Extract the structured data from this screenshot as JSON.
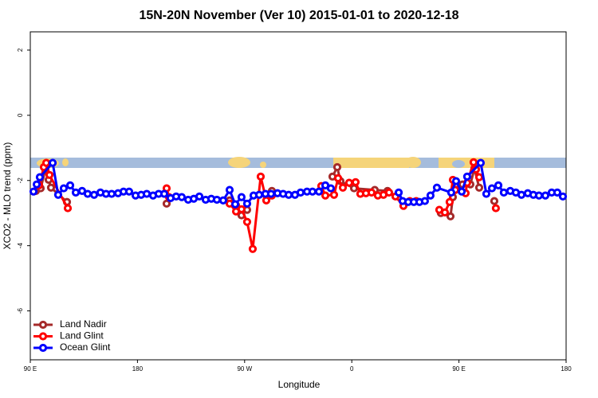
{
  "chart_data": {
    "type": "line",
    "title": "15N-20N November (Ver 10)   2015-01-01 to 2020-12-18",
    "x_label": "Longitude",
    "y_label": "XCO2 - MLO trend (ppm)",
    "xlim": [
      90,
      540
    ],
    "xticks": [
      {
        "value": 90,
        "label": "90 E"
      },
      180,
      {
        "value": 270,
        "label": "90 W"
      },
      {
        "value": 360,
        "label": "0"
      },
      {
        "value": 450,
        "label": "90 E"
      },
      {
        "value": 540,
        "label": "180"
      }
    ],
    "ylim": [
      -7.5,
      2.56
    ],
    "yticks": [
      -6,
      -4,
      -2,
      0,
      2
    ],
    "legend": "bottom-left",
    "series": [
      {
        "name": "Land Nadir",
        "color": "#a52a2a",
        "x": [
          94.7,
          98.7,
          102.7,
          105.4,
          107.4,
          120.8,
          null,
          204.5,
          null,
          257.4,
          262.8,
          267.4,
          272.1,
          null,
          288.2,
          292.9,
          null,
          343.8,
          347.8,
          350.5,
          361.9,
          379.3,
          390.0,
          null,
          434.8,
          442.9,
          444.9,
          447.6,
          453.0,
          459.6,
          463.0,
          467.0,
          null,
          479.7
        ],
        "values": [
          -2.32,
          -2.24,
          -1.66,
          -1.98,
          -2.22,
          -2.66,
          null,
          -2.71,
          null,
          -2.61,
          -2.76,
          -3.07,
          -2.9,
          null,
          -2.46,
          -2.32,
          null,
          -1.88,
          -1.59,
          -2.02,
          -2.24,
          -2.29,
          -2.32,
          null,
          -3.0,
          -3.1,
          -2.51,
          -2.12,
          -2.12,
          -2.12,
          -1.63,
          -2.22,
          null,
          -2.63
        ]
      },
      {
        "name": "Land Glint",
        "color": "#ff0000",
        "x": [
          97.4,
          101.4,
          103.4,
          106.1,
          121.5,
          null,
          204.5,
          206.5,
          null,
          257.4,
          262.8,
          267.4,
          272.1,
          276.8,
          283.5,
          288.2,
          292.9,
          null,
          334.4,
          337.8,
          345.1,
          348.5,
          352.5,
          357.8,
          363.2,
          367.2,
          371.9,
          376.6,
          381.9,
          386.6,
          391.3,
          396.7,
          403.4,
          408.7,
          414.1,
          null,
          433.5,
          438.2,
          442.2,
          444.9,
          446.9,
          455.6,
          456.9,
          462.3,
          464.3,
          467.0,
          null,
          481.0
        ],
        "values": [
          -2.15,
          -1.59,
          -1.46,
          -1.83,
          -2.85,
          null,
          -2.24,
          -2.51,
          null,
          -2.71,
          -2.95,
          -2.88,
          -3.27,
          -4.1,
          -1.88,
          -2.61,
          -2.46,
          null,
          -2.17,
          -2.46,
          -2.44,
          -1.93,
          -2.22,
          -2.07,
          -2.05,
          -2.41,
          -2.39,
          -2.37,
          -2.46,
          -2.44,
          -2.37,
          -2.49,
          -2.78,
          -2.63,
          -2.63,
          null,
          -2.9,
          -2.98,
          -2.66,
          -1.98,
          -2.29,
          -2.39,
          -2.07,
          -1.44,
          -1.66,
          -1.9,
          null,
          -2.85
        ]
      },
      {
        "name": "Ocean Glint",
        "color": "#0000ff",
        "x": [
          92.7,
          95.4,
          98.0,
          108.8,
          113.4,
          118.1,
          123.5,
          128.2,
          133.5,
          138.2,
          143.6,
          148.9,
          153.6,
          158.3,
          163.7,
          168.3,
          173.0,
          178.4,
          183.1,
          187.8,
          193.1,
          197.8,
          202.5,
          207.8,
          212.5,
          217.2,
          222.6,
          227.3,
          232.0,
          237.3,
          242.0,
          246.7,
          252.0,
          257.4,
          262.1,
          267.4,
          272.1,
          277.5,
          282.2,
          287.5,
          292.2,
          297.6,
          302.3,
          307.0,
          312.3,
          317.0,
          322.4,
          327.0,
          332.4,
          337.8,
          342.4,
          null,
          399.4,
          402.7,
          407.4,
          412.1,
          416.8,
          421.4,
          426.1,
          431.5,
          443.5,
          447.6,
          452.3,
          456.9,
          468.3,
          473.0,
          477.7,
          483.1,
          487.7,
          493.1,
          497.8,
          502.5,
          507.8,
          512.5,
          517.2,
          522.6,
          527.9,
          532.6,
          537.3
        ],
        "values": [
          -2.34,
          -2.12,
          -1.9,
          -1.46,
          -2.44,
          -2.24,
          -2.15,
          -2.37,
          -2.32,
          -2.41,
          -2.44,
          -2.37,
          -2.41,
          -2.41,
          -2.39,
          -2.34,
          -2.34,
          -2.46,
          -2.44,
          -2.41,
          -2.46,
          -2.41,
          -2.41,
          -2.54,
          -2.49,
          -2.51,
          -2.59,
          -2.56,
          -2.49,
          -2.59,
          -2.56,
          -2.59,
          -2.61,
          -2.29,
          -2.73,
          -2.51,
          -2.71,
          -2.46,
          -2.44,
          -2.41,
          -2.41,
          -2.39,
          -2.41,
          -2.44,
          -2.44,
          -2.37,
          -2.34,
          -2.34,
          -2.34,
          -2.15,
          -2.24,
          null,
          -2.37,
          -2.63,
          -2.66,
          -2.66,
          -2.66,
          -2.63,
          -2.46,
          -2.22,
          -2.37,
          -2.02,
          -2.34,
          -1.88,
          -1.46,
          -2.41,
          -2.24,
          -2.15,
          -2.37,
          -2.32,
          -2.37,
          -2.44,
          -2.39,
          -2.44,
          -2.46,
          -2.46,
          -2.37,
          -2.37,
          -2.49
        ]
      }
    ]
  }
}
